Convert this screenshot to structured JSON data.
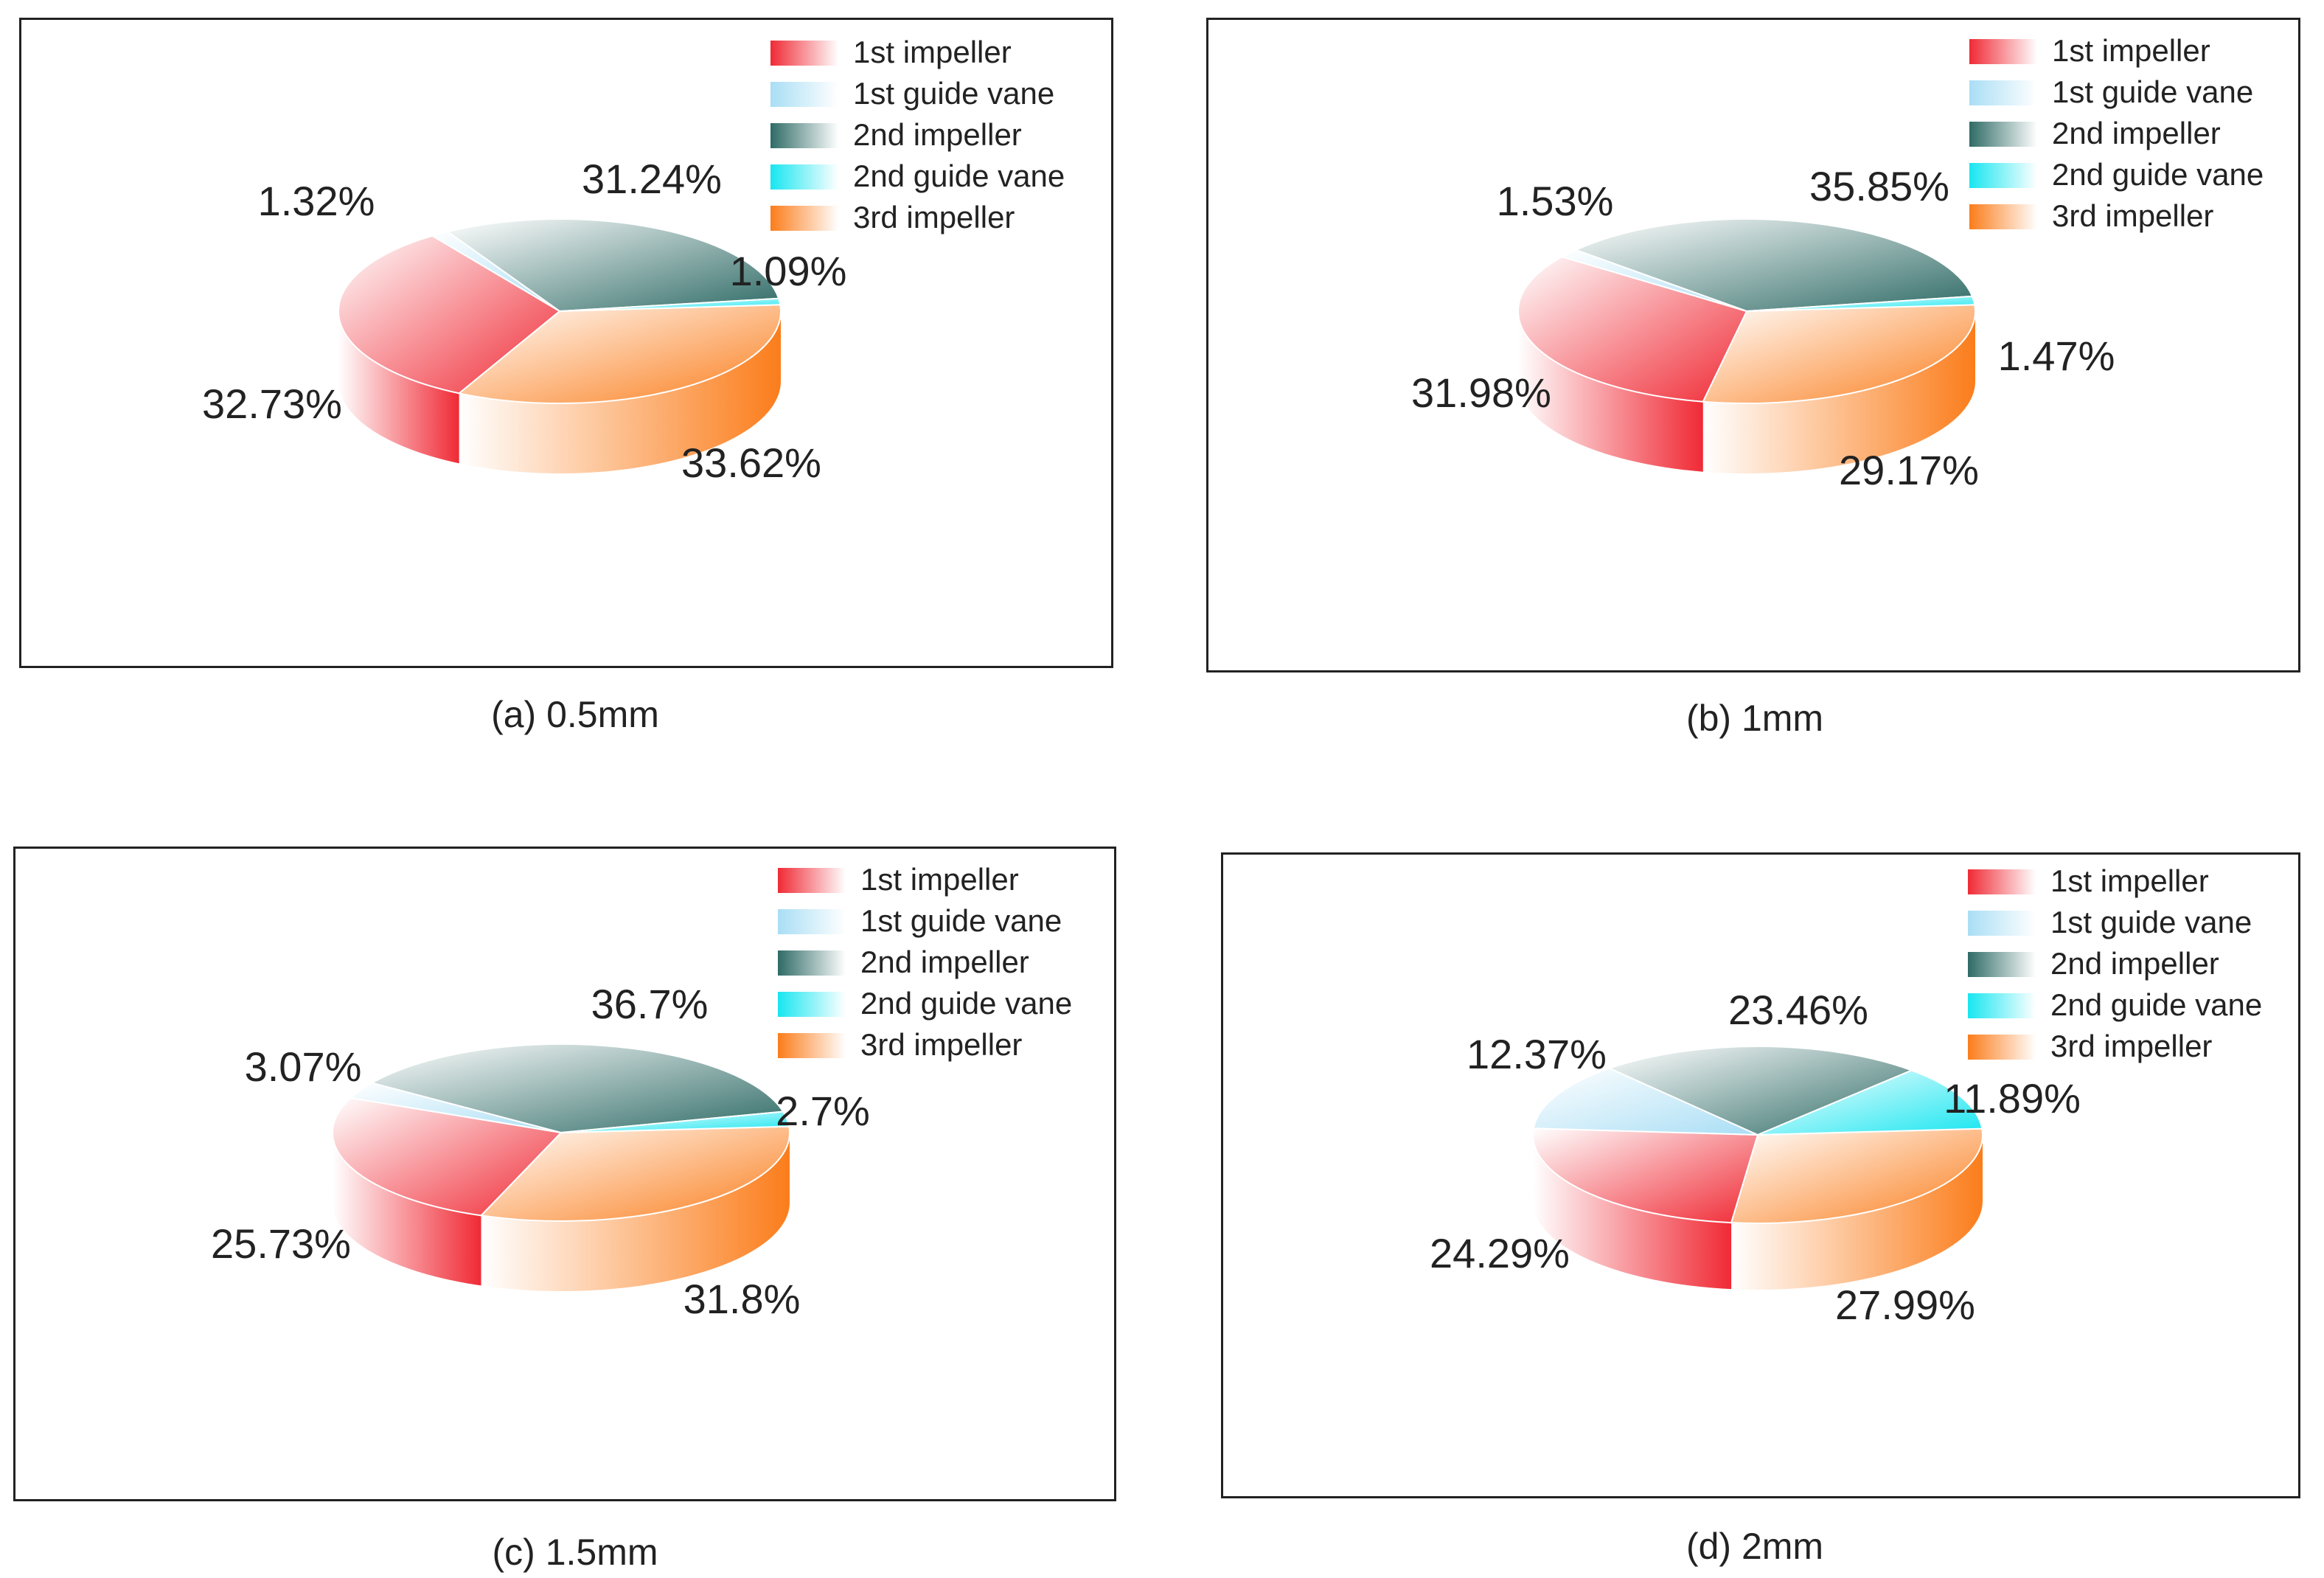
{
  "chart_data": [
    {
      "type": "pie",
      "caption": "(a) 0.5mm",
      "legend_position": "top-right",
      "labels": [
        "1st impeller",
        "1st guide vane",
        "2nd impeller",
        "2nd guide vane",
        "3rd impeller"
      ],
      "values": [
        32.73,
        1.32,
        31.24,
        1.09,
        33.62
      ],
      "value_labels": [
        "32.73%",
        "1.32%",
        "31.24%",
        "1.09%",
        "33.62%"
      ]
    },
    {
      "type": "pie",
      "caption": "(b) 1mm",
      "legend_position": "top-right",
      "labels": [
        "1st impeller",
        "1st guide vane",
        "2nd impeller",
        "2nd guide vane",
        "3rd impeller"
      ],
      "values": [
        31.98,
        1.53,
        35.85,
        1.47,
        29.17
      ],
      "value_labels": [
        "31.98%",
        "1.53%",
        "35.85%",
        "1.47%",
        "29.17%"
      ]
    },
    {
      "type": "pie",
      "caption": "(c) 1.5mm",
      "legend_position": "top-right",
      "labels": [
        "1st impeller",
        "1st guide vane",
        "2nd impeller",
        "2nd guide vane",
        "3rd impeller"
      ],
      "values": [
        25.73,
        3.07,
        36.7,
        2.7,
        31.8
      ],
      "value_labels": [
        "25.73%",
        "3.07%",
        "36.7%",
        "2.7%",
        "31.8%"
      ]
    },
    {
      "type": "pie",
      "caption": "(d) 2mm",
      "legend_position": "top-right",
      "labels": [
        "1st impeller",
        "1st guide vane",
        "2nd impeller",
        "2nd guide vane",
        "3rd impeller"
      ],
      "values": [
        24.29,
        12.37,
        23.46,
        11.89,
        27.99
      ],
      "value_labels": [
        "24.29%",
        "12.37%",
        "23.46%",
        "11.89%",
        "27.99%"
      ]
    }
  ],
  "colors": {
    "1st impeller": "#f02a35",
    "1st guide vane": "#a9def5",
    "2nd impeller": "#2f6b66",
    "2nd guide vane": "#18e6f0",
    "3rd impeller": "#fb7d1b"
  }
}
